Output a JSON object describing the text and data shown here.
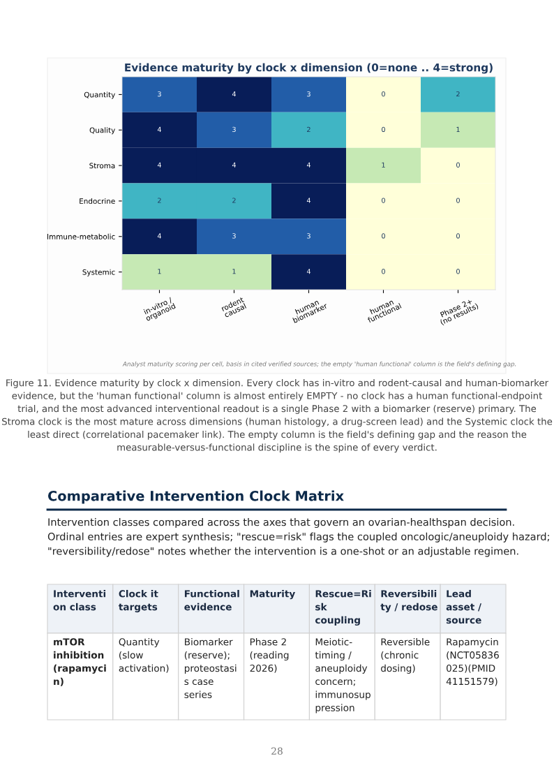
{
  "chart_data": [
    {
      "type": "heatmap",
      "title": "Evidence maturity by clock x dimension (0=none .. 4=strong)",
      "categories": [
        "in-vitro /\norganoid",
        "rodent\ncausal",
        "human\nbiomarker",
        "human\nfunctional",
        "Phase 2+\n(no results)"
      ],
      "y_categories": [
        "Quantity",
        "Quality",
        "Stroma",
        "Endocrine",
        "Immune-metabolic",
        "Systemic"
      ],
      "cells": [
        [
          3,
          4,
          3,
          0,
          2
        ],
        [
          4,
          3,
          2,
          0,
          1
        ],
        [
          4,
          4,
          4,
          1,
          0
        ],
        [
          2,
          2,
          4,
          0,
          0
        ],
        [
          4,
          3,
          3,
          0,
          0
        ],
        [
          1,
          1,
          4,
          0,
          0
        ]
      ],
      "data_labels": true,
      "annotations": [
        "Analyst maturity scoring per cell, basis in cited verified sources; the empty 'human functional' column is the field's defining gap.",
        "Figure 11. Evidence maturity by clock x dimension. Every clock has in-vitro and rodent-causal and human-biomarker evidence, but the 'human functional' column is almost entirely EMPTY - no clock has a human functional-endpoint trial, and the most advanced interventional readout is a single Phase 2 with a biomarker (reserve) primary. The Stroma clock is the most mature across dimensions (human histology, a drug-screen lead) and the Systemic clock the least direct (correlational pacemaker link). The empty column is the field's defining gap and the reason the measurable-versus-functional discipline is the spine of every verdict."
      ]
    },
    {
      "type": "other",
      "title": "Comparative Intervention Clock Matrix",
      "categories": [
        "Interventi\non class",
        "Clock it\ntargets",
        "Functional\nevidence",
        "Maturity",
        "Rescue=Ri\nsk\ncoupling",
        "Reversibili\nty / redose",
        "Lead\nasset /\nsource"
      ],
      "annotations": [
        "Intervention classes compared across the axes that govern an ovarian-healthspan decision. Ordinal entries are expert synthesis; \"rescue=risk\" flags the coupled oncologic/aneuploidy hazard; \"reversibility/redose\" notes whether the intervention is a one-shot or an adjustable regimen.",
        "mTOR\ninhibition\n(rapamyci\nn)",
        "Quantity\n(slow\nactivation)",
        "Biomarker\n(reserve);\nproteostasi\ns case\nseries",
        "Phase 2\n(reading\n2026)",
        "Meiotic-\ntiming /\naneuploidy\nconcern;\nimmunosup\npression",
        "Reversible\n(chronic\ndosing)",
        "Rapamycin\n(NCT05836\n025)(PMID\n41151579)",
        "28"
      ]
    }
  ]
}
